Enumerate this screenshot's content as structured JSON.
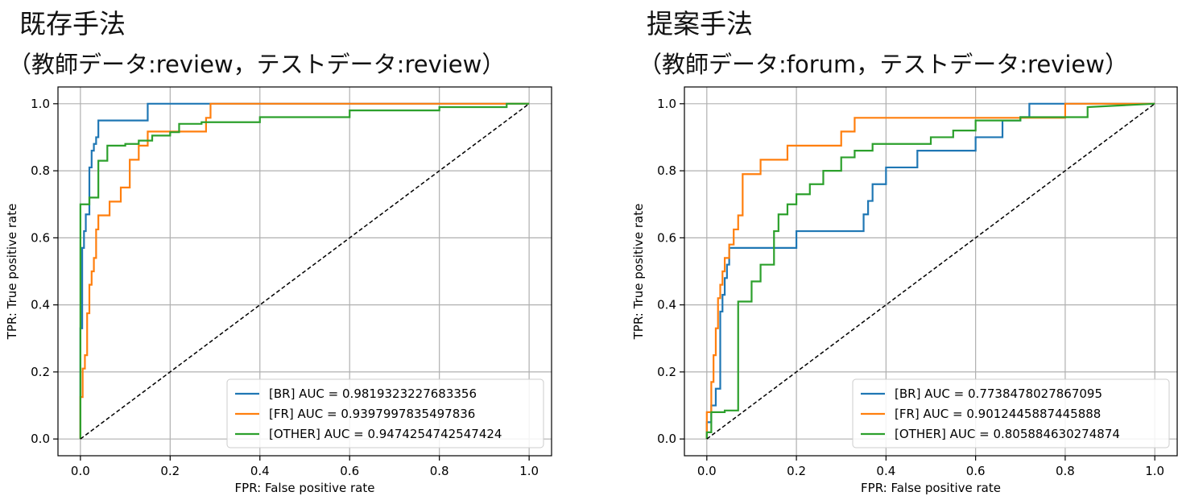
{
  "chart_data": [
    {
      "type": "line",
      "title": "既存手法",
      "subtitle": "（教師データ:review，テストデータ:review）",
      "xlabel": "FPR: False positive rate",
      "ylabel": "TPR: True positive rate",
      "xlim": [
        -0.05,
        1.05
      ],
      "ylim": [
        -0.05,
        1.05
      ],
      "xticks": [
        "0.0",
        "0.2",
        "0.4",
        "0.6",
        "0.8",
        "1.0"
      ],
      "yticks": [
        "0.0",
        "0.2",
        "0.4",
        "0.6",
        "0.8",
        "1.0"
      ],
      "grid": true,
      "legend_position": "lower-right",
      "series": [
        {
          "name": "[BR] AUC = 0.9819323227683356",
          "color": "#1f77b4",
          "x": [
            0,
            0,
            0.004,
            0.004,
            0.008,
            0.008,
            0.012,
            0.012,
            0.02,
            0.02,
            0.025,
            0.025,
            0.03,
            0.03,
            0.035,
            0.035,
            0.04,
            0.04,
            0.05,
            0.05,
            0.15,
            0.15,
            1.0
          ],
          "y": [
            0,
            0.33,
            0.33,
            0.57,
            0.57,
            0.62,
            0.62,
            0.67,
            0.67,
            0.81,
            0.81,
            0.86,
            0.86,
            0.88,
            0.88,
            0.9,
            0.9,
            0.95,
            0.95,
            0.95,
            0.95,
            1.0,
            1.0
          ]
        },
        {
          "name": "[FR] AUC = 0.9397997835497836",
          "color": "#ff7f0e",
          "x": [
            0,
            0,
            0.005,
            0.005,
            0.01,
            0.01,
            0.015,
            0.015,
            0.02,
            0.02,
            0.025,
            0.025,
            0.03,
            0.03,
            0.035,
            0.035,
            0.04,
            0.04,
            0.065,
            0.065,
            0.09,
            0.09,
            0.11,
            0.11,
            0.13,
            0.13,
            0.15,
            0.15,
            0.2,
            0.2,
            0.28,
            0.28,
            0.29,
            0.29,
            1.0
          ],
          "y": [
            0,
            0.125,
            0.125,
            0.21,
            0.21,
            0.25,
            0.25,
            0.375,
            0.375,
            0.46,
            0.46,
            0.5,
            0.5,
            0.54,
            0.54,
            0.625,
            0.625,
            0.667,
            0.667,
            0.708,
            0.708,
            0.75,
            0.75,
            0.833,
            0.833,
            0.875,
            0.875,
            0.917,
            0.917,
            0.917,
            0.917,
            0.958,
            0.958,
            1.0,
            1.0
          ]
        },
        {
          "name": "[OTHER] AUC = 0.9474254742547424",
          "color": "#2ca02c",
          "x": [
            0,
            0,
            0.02,
            0.02,
            0.04,
            0.04,
            0.06,
            0.06,
            0.1,
            0.1,
            0.13,
            0.13,
            0.16,
            0.16,
            0.2,
            0.2,
            0.22,
            0.22,
            0.27,
            0.27,
            0.4,
            0.4,
            0.6,
            0.6,
            0.8,
            0.8,
            0.95,
            0.95,
            1.0
          ],
          "y": [
            0,
            0.7,
            0.7,
            0.72,
            0.72,
            0.83,
            0.83,
            0.875,
            0.875,
            0.88,
            0.88,
            0.89,
            0.89,
            0.905,
            0.905,
            0.915,
            0.915,
            0.94,
            0.94,
            0.945,
            0.945,
            0.96,
            0.96,
            0.98,
            0.98,
            0.99,
            0.99,
            1.0,
            1.0
          ]
        },
        {
          "name": "",
          "color": "#000000",
          "dashed": true,
          "x": [
            0,
            1
          ],
          "y": [
            0,
            1
          ]
        }
      ]
    },
    {
      "type": "line",
      "title": "提案手法",
      "subtitle": "（教師データ:forum，テストデータ:review）",
      "xlabel": "FPR: False positive rate",
      "ylabel": "TPR: True positive rate",
      "xlim": [
        -0.05,
        1.05
      ],
      "ylim": [
        -0.05,
        1.05
      ],
      "xticks": [
        "0.0",
        "0.2",
        "0.4",
        "0.6",
        "0.8",
        "1.0"
      ],
      "yticks": [
        "0.0",
        "0.2",
        "0.4",
        "0.6",
        "0.8",
        "1.0"
      ],
      "grid": true,
      "legend_position": "lower-right",
      "series": [
        {
          "name": "[BR] AUC = 0.7738478027867095",
          "color": "#1f77b4",
          "x": [
            0,
            0,
            0.01,
            0.01,
            0.02,
            0.02,
            0.03,
            0.03,
            0.035,
            0.035,
            0.04,
            0.04,
            0.045,
            0.045,
            0.05,
            0.05,
            0.06,
            0.06,
            0.07,
            0.07,
            0.2,
            0.2,
            0.35,
            0.35,
            0.36,
            0.36,
            0.37,
            0.37,
            0.4,
            0.4,
            0.47,
            0.47,
            0.55,
            0.55,
            0.6,
            0.6,
            0.62,
            0.62,
            0.66,
            0.66,
            0.7,
            0.7,
            0.72,
            0.72,
            0.8,
            0.8,
            1.0
          ],
          "y": [
            0,
            0.05,
            0.05,
            0.1,
            0.1,
            0.15,
            0.15,
            0.38,
            0.38,
            0.43,
            0.43,
            0.48,
            0.48,
            0.52,
            0.52,
            0.57,
            0.57,
            0.57,
            0.57,
            0.57,
            0.57,
            0.62,
            0.62,
            0.67,
            0.67,
            0.71,
            0.71,
            0.76,
            0.76,
            0.81,
            0.81,
            0.86,
            0.86,
            0.86,
            0.86,
            0.9,
            0.9,
            0.9,
            0.9,
            0.95,
            0.95,
            0.96,
            0.96,
            1.0,
            1.0,
            1.0,
            1.0
          ]
        },
        {
          "name": "[FR] AUC = 0.9012445887445888",
          "color": "#ff7f0e",
          "x": [
            0,
            0,
            0.01,
            0.01,
            0.015,
            0.015,
            0.02,
            0.02,
            0.025,
            0.025,
            0.03,
            0.03,
            0.035,
            0.035,
            0.04,
            0.04,
            0.05,
            0.05,
            0.06,
            0.06,
            0.07,
            0.07,
            0.08,
            0.08,
            0.12,
            0.12,
            0.18,
            0.18,
            0.3,
            0.3,
            0.33,
            0.33,
            0.8,
            0.8,
            1.0
          ],
          "y": [
            0,
            0.08,
            0.08,
            0.17,
            0.17,
            0.25,
            0.25,
            0.33,
            0.33,
            0.42,
            0.42,
            0.46,
            0.46,
            0.5,
            0.5,
            0.54,
            0.54,
            0.58,
            0.58,
            0.625,
            0.625,
            0.667,
            0.667,
            0.79,
            0.79,
            0.833,
            0.833,
            0.875,
            0.875,
            0.917,
            0.917,
            0.958,
            0.958,
            1.0,
            1.0
          ]
        },
        {
          "name": "[OTHER] AUC = 0.805884630274874",
          "color": "#2ca02c",
          "x": [
            0,
            0,
            0.01,
            0.01,
            0.04,
            0.04,
            0.07,
            0.07,
            0.1,
            0.1,
            0.12,
            0.12,
            0.15,
            0.15,
            0.16,
            0.16,
            0.18,
            0.18,
            0.2,
            0.2,
            0.23,
            0.23,
            0.26,
            0.26,
            0.3,
            0.3,
            0.33,
            0.33,
            0.37,
            0.37,
            0.5,
            0.5,
            0.55,
            0.55,
            0.6,
            0.6,
            0.7,
            0.7,
            0.85,
            0.85,
            1.0
          ],
          "y": [
            0,
            0.02,
            0.02,
            0.08,
            0.08,
            0.085,
            0.085,
            0.41,
            0.41,
            0.47,
            0.47,
            0.52,
            0.52,
            0.62,
            0.62,
            0.67,
            0.67,
            0.7,
            0.7,
            0.73,
            0.73,
            0.76,
            0.76,
            0.8,
            0.8,
            0.84,
            0.84,
            0.86,
            0.86,
            0.88,
            0.88,
            0.9,
            0.9,
            0.92,
            0.92,
            0.95,
            0.95,
            0.96,
            0.96,
            0.99,
            1.0
          ]
        },
        {
          "name": "",
          "color": "#000000",
          "dashed": true,
          "x": [
            0,
            1
          ],
          "y": [
            0,
            1
          ]
        }
      ]
    }
  ]
}
